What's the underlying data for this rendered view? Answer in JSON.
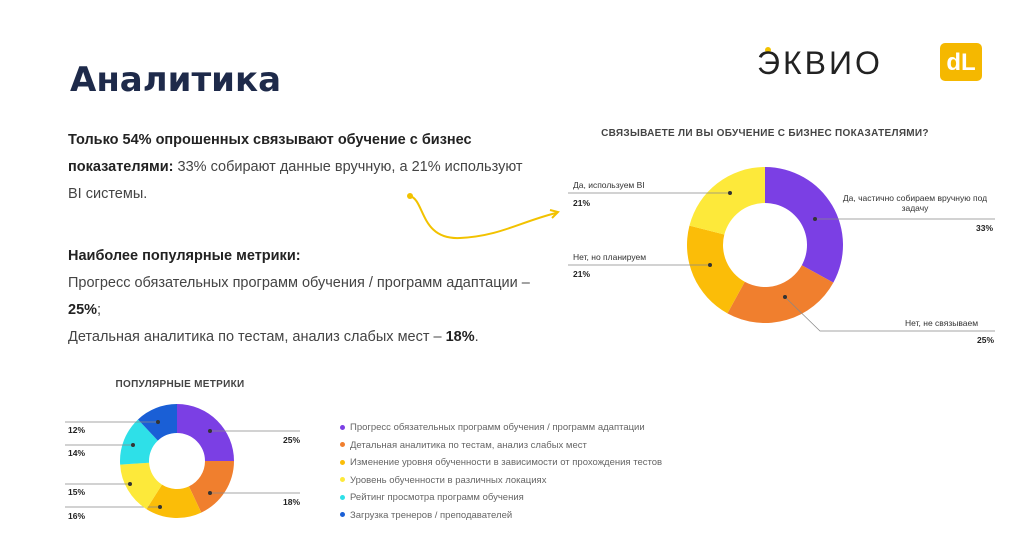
{
  "title": "Аналитика",
  "logo": {
    "text": "ЭКВИО",
    "badge": "dL"
  },
  "summary": {
    "bold": "Только 54% опрошенных связывают обучение с бизнес показателями:",
    "text": " 33% собирают данные вручную, а 21% используют BI системы."
  },
  "metrics": {
    "heading": "Наиболее популярные метрики:",
    "lines": [
      {
        "text": "Прогресс обязательных программ обучения / программ адаптации – ",
        "bold": "25%",
        "end": ";"
      },
      {
        "text": "Детальная аналитика по тестам, анализ слабых мест – ",
        "bold": "18%",
        "end": "."
      }
    ]
  },
  "chart_data": [
    {
      "type": "donut",
      "title": "СВЯЗЫВАЕТЕ ЛИ ВЫ ОБУЧЕНИЕ С БИЗНЕС ПОКАЗАТЕЛЯМИ?",
      "categories": [
        "Да, частично собираем вручную под задачу",
        "Нет, не связываем",
        "Нет, но планируем",
        "Да, используем BI"
      ],
      "values": [
        33,
        25,
        21,
        21
      ],
      "value_labels": [
        "33%",
        "25%",
        "21%",
        "21%"
      ],
      "colors": [
        "#7b3fe4",
        "#f07f2e",
        "#fbbd08",
        "#fde93a"
      ]
    },
    {
      "type": "donut",
      "title": "ПОПУЛЯРНЫЕ МЕТРИКИ",
      "categories": [
        "Прогресс обязательных программ обучения / программ адаптации",
        "Детальная аналитика по тестам, анализ слабых мест",
        "Изменение уровня обученности в зависимости от прохождения тестов",
        "Уровень обученности в различных локациях",
        "Рейтинг просмотра программ обучения",
        "Загрузка тренеров / преподавателей"
      ],
      "values": [
        25,
        18,
        16,
        15,
        14,
        12
      ],
      "value_labels": [
        "25%",
        "18%",
        "16%",
        "15%",
        "14%",
        "12%"
      ],
      "colors": [
        "#7b3fe4",
        "#f07f2e",
        "#fbbd08",
        "#fde93a",
        "#2ee0e8",
        "#1a5fd6"
      ],
      "legend": true
    }
  ]
}
